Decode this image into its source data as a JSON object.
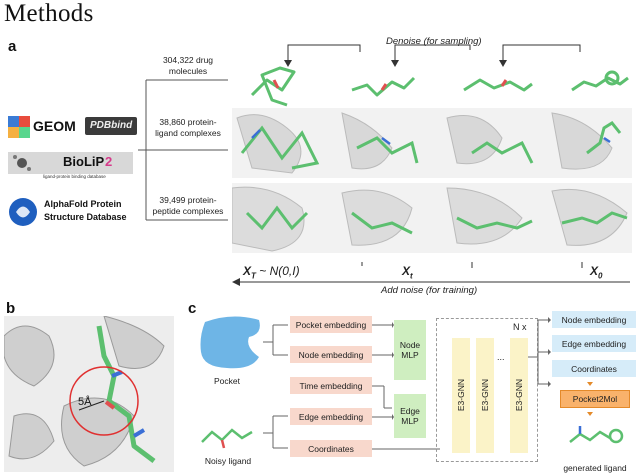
{
  "heading": "Methods",
  "panels": {
    "a": "a",
    "b": "b",
    "c": "c"
  },
  "panel_a": {
    "datasets": [
      {
        "line1": "304,322 drug",
        "line2": "molecules"
      },
      {
        "line1": "38,860 protein-",
        "line2": "ligand complexes"
      },
      {
        "line1": "39,499 protein-",
        "line2": "peptide complexes"
      }
    ],
    "logos": {
      "geom": "GEOM",
      "pdbbind": "PDBbind",
      "biolip_main": "BioLiP",
      "biolip_num": "2",
      "biolip_sub": "ligand-protein binding database",
      "alphafold_line1": "AlphaFold Protein",
      "alphafold_line2": "Structure Database"
    },
    "denoise_label": "Denoise (for sampling)",
    "noise_label": "Add noise (for training)",
    "x_labels": {
      "xt_noise": "X",
      "xt_noise_sub": "T",
      "xt_noise_rest": " ~ N(0,I)",
      "xt": "X",
      "xt_sub": "t",
      "x0": "X",
      "x0_sub": "0"
    }
  },
  "panel_b": {
    "distance_label": "5Å"
  },
  "panel_c": {
    "pocket_label": "Pocket",
    "ligand_label": "Noisy ligand",
    "inputs": [
      "Pocket embedding",
      "Node embedding",
      "Time embedding",
      "Edge embedding",
      "Coordinates"
    ],
    "mlps": [
      "Node MLP",
      "Edge MLP"
    ],
    "gnn_layers": [
      "E3-GNN",
      "E3-GNN",
      "...",
      "E3-GNN"
    ],
    "repeat_label": "N x",
    "outputs": [
      "Node embedding",
      "Edge embedding",
      "Coordinates"
    ],
    "decoder": "Pocket2Mol",
    "generated_label": "generated ligand"
  },
  "colors": {
    "pink": "#f8d8cc",
    "green": "#cfeec0",
    "yellow": "#fbf3c8",
    "blue": "#d6ecf9",
    "orange": "#f9b26b",
    "ligand": "#5cbf6f",
    "pocket": "#5aa9e6",
    "circle": "#e03030"
  }
}
